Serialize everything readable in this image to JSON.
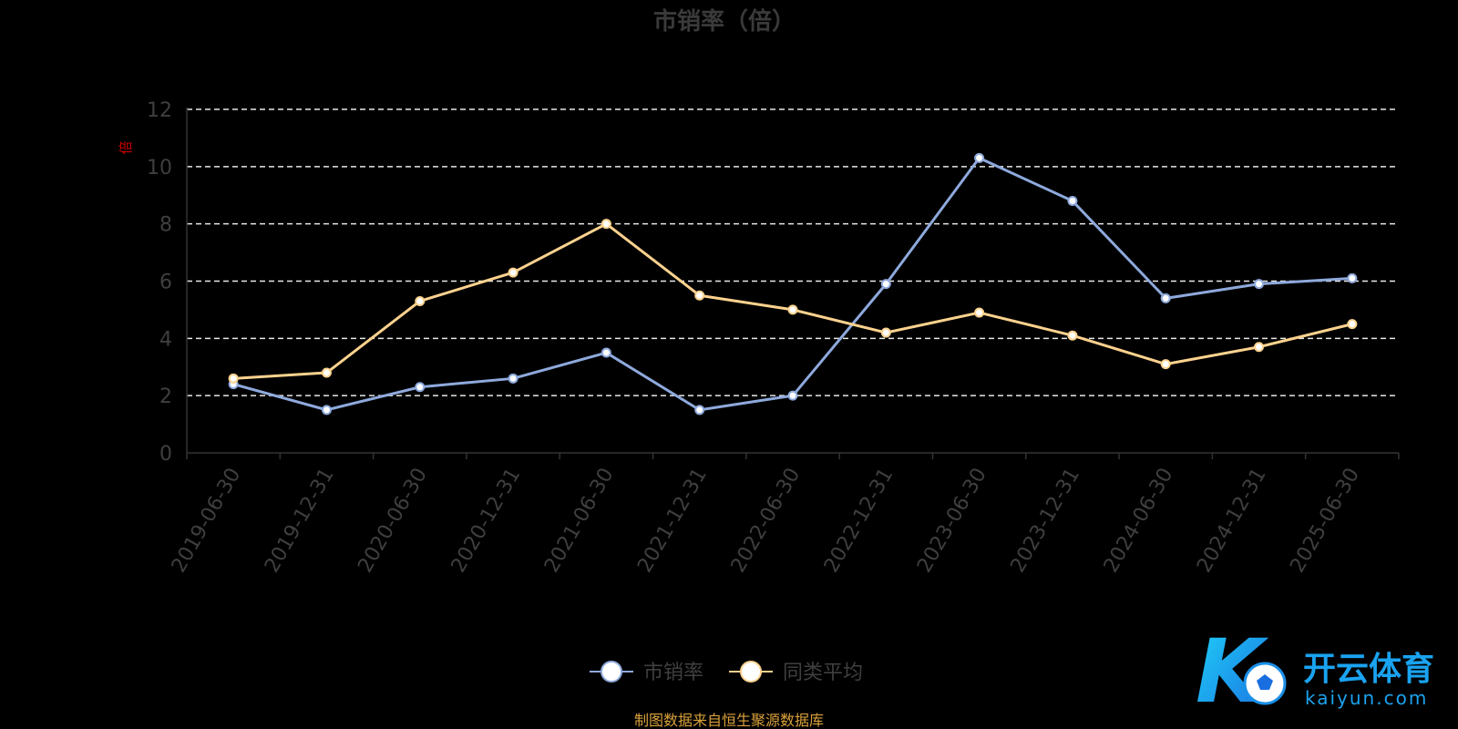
{
  "chart_data": {
    "type": "line",
    "title": "市销率（倍）",
    "ylabel": "倍",
    "ylim": [
      0,
      12
    ],
    "yticks": [
      "0",
      "2",
      "4",
      "6",
      "8",
      "10",
      "12"
    ],
    "grid": true,
    "legend_position": "bottom-center",
    "categories": [
      "2019-06-30",
      "2019-12-31",
      "2020-06-30",
      "2020-12-31",
      "2021-06-30",
      "2021-12-31",
      "2022-06-30",
      "2022-12-31",
      "2023-06-30",
      "2023-12-31",
      "2024-06-30",
      "2024-12-31",
      "2025-06-30"
    ],
    "series": [
      {
        "name": "市销率",
        "color": "#8ea9dc",
        "values": [
          2.4,
          1.5,
          2.3,
          2.6,
          3.5,
          1.5,
          2.0,
          5.9,
          10.3,
          8.8,
          5.4,
          5.9,
          6.1
        ]
      },
      {
        "name": "同类平均",
        "color": "#fcd28e",
        "values": [
          2.6,
          2.8,
          5.3,
          6.3,
          8.0,
          5.5,
          5.0,
          4.2,
          4.9,
          4.1,
          3.1,
          3.7,
          4.5
        ]
      }
    ]
  },
  "source_note": "制图数据来自恒生聚源数据库",
  "watermark": {
    "logo_text": "K",
    "cn_text": "开云体育",
    "en_text": "kaiyun.com",
    "color": "#1aa3f0"
  }
}
